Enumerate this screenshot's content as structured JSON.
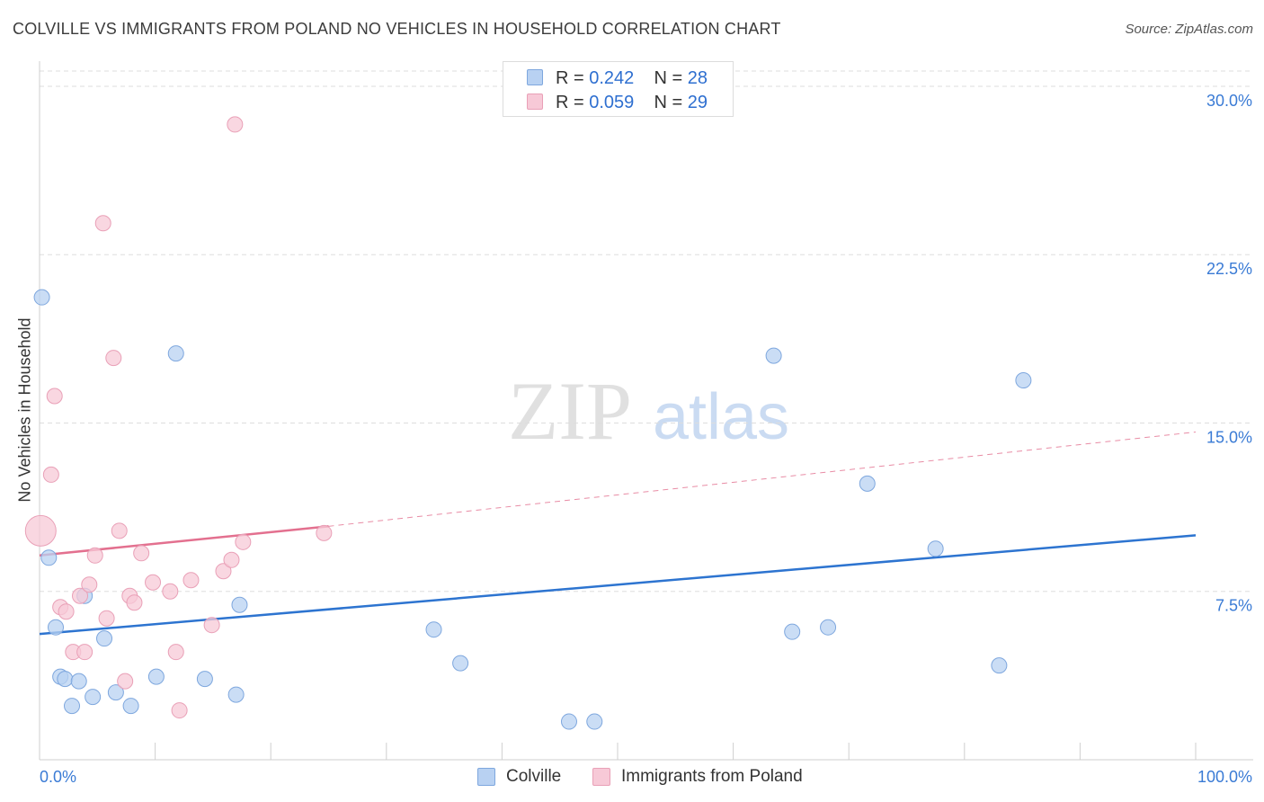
{
  "title": "COLVILLE VS IMMIGRANTS FROM POLAND NO VEHICLES IN HOUSEHOLD CORRELATION CHART",
  "source": "Source: ZipAtlas.com",
  "watermark": {
    "zip": "ZIP",
    "atlas": "atlas"
  },
  "legend": {
    "colville": {
      "r_label": "R =",
      "r_value": "0.242",
      "n_label": "N =",
      "n_value": "28"
    },
    "poland": {
      "r_label": "R =",
      "r_value": "0.059",
      "n_label": "N =",
      "n_value": "29"
    }
  },
  "bottom_legend": {
    "colville": "Colville",
    "poland": "Immigrants from Poland"
  },
  "colors": {
    "blue_fill": "#b8d1f2",
    "blue_stroke": "#7ea7de",
    "blue_line": "#2d74d0",
    "pink_fill": "#f7c9d7",
    "pink_stroke": "#e9a0b7",
    "pink_line": "#e3708f",
    "axis_text": "#3a7bd5",
    "grid": "#dddddd"
  },
  "chart_data": {
    "type": "scatter",
    "title": "COLVILLE VS IMMIGRANTS FROM POLAND NO VEHICLES IN HOUSEHOLD CORRELATION CHART",
    "xlabel": "",
    "ylabel": "No Vehicles in Household",
    "xlim": [
      0,
      100
    ],
    "ylim": [
      0,
      30.8
    ],
    "x_tick_labels": [
      "0.0%",
      "100.0%"
    ],
    "y_ticks": [
      7.5,
      15.0,
      22.5,
      30.0
    ],
    "y_tick_labels": [
      "7.5%",
      "15.0%",
      "22.5%",
      "30.0%"
    ],
    "grid": true,
    "series": [
      {
        "name": "Colville",
        "points": [
          [
            0.2,
            20.6
          ],
          [
            0.8,
            9.0
          ],
          [
            1.4,
            5.9
          ],
          [
            1.8,
            3.7
          ],
          [
            2.2,
            3.6
          ],
          [
            2.8,
            2.4
          ],
          [
            3.4,
            3.5
          ],
          [
            3.9,
            7.3
          ],
          [
            4.6,
            2.8
          ],
          [
            5.6,
            5.4
          ],
          [
            6.6,
            3.0
          ],
          [
            7.9,
            2.4
          ],
          [
            10.1,
            3.7
          ],
          [
            11.8,
            18.1
          ],
          [
            14.3,
            3.6
          ],
          [
            17.0,
            2.9
          ],
          [
            17.3,
            6.9
          ],
          [
            34.1,
            5.8
          ],
          [
            36.4,
            4.3
          ],
          [
            45.8,
            1.7
          ],
          [
            48.0,
            1.7
          ],
          [
            63.5,
            18.0
          ],
          [
            65.1,
            5.7
          ],
          [
            68.2,
            5.9
          ],
          [
            71.6,
            12.3
          ],
          [
            77.5,
            9.4
          ],
          [
            83.0,
            4.2
          ],
          [
            85.1,
            16.9
          ]
        ],
        "trend": {
          "x": [
            0,
            100
          ],
          "y": [
            5.6,
            10.0
          ],
          "dashed_extension": false
        }
      },
      {
        "name": "Immigrants from Poland",
        "points": [
          [
            0.1,
            10.2
          ],
          [
            1.0,
            12.7
          ],
          [
            1.3,
            16.2
          ],
          [
            1.8,
            6.8
          ],
          [
            2.3,
            6.6
          ],
          [
            2.9,
            4.8
          ],
          [
            3.5,
            7.3
          ],
          [
            3.9,
            4.8
          ],
          [
            4.3,
            7.8
          ],
          [
            4.8,
            9.1
          ],
          [
            5.5,
            23.9
          ],
          [
            5.8,
            6.3
          ],
          [
            6.4,
            17.9
          ],
          [
            6.9,
            10.2
          ],
          [
            7.4,
            3.5
          ],
          [
            7.8,
            7.3
          ],
          [
            8.2,
            7.0
          ],
          [
            8.8,
            9.2
          ],
          [
            9.8,
            7.9
          ],
          [
            11.3,
            7.5
          ],
          [
            11.8,
            4.8
          ],
          [
            12.1,
            2.2
          ],
          [
            13.1,
            8.0
          ],
          [
            14.9,
            6.0
          ],
          [
            15.9,
            8.4
          ],
          [
            16.6,
            8.9
          ],
          [
            16.9,
            28.3
          ],
          [
            17.6,
            9.7
          ],
          [
            24.6,
            10.1
          ]
        ],
        "trend": {
          "x": [
            0,
            25
          ],
          "y": [
            9.1,
            10.4
          ],
          "dashed_extension": true,
          "dashed_to": [
            100,
            14.6
          ]
        }
      }
    ]
  }
}
